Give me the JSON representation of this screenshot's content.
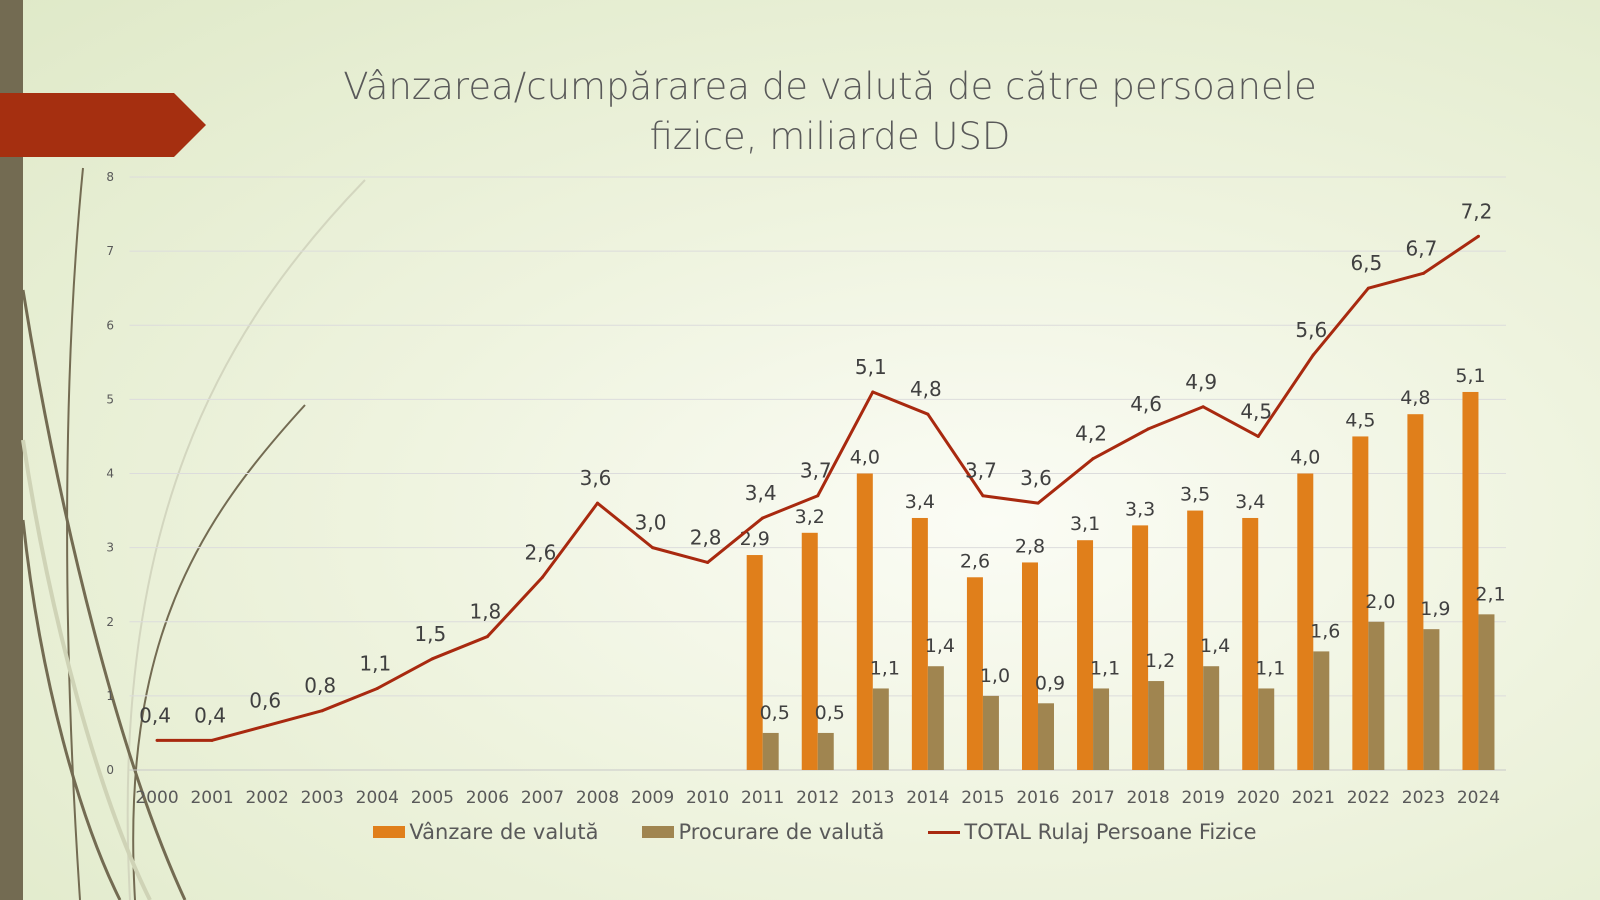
{
  "title_line1": "Vânzarea/cumpărarea de valută de către persoanele",
  "title_line2": "fizice, miliarde USD",
  "colors": {
    "sales": "#e07f1b",
    "purchase": "#a08550",
    "total": "#a8290f",
    "banner": "#a52f10",
    "sidebar": "#736b52"
  },
  "chart_data": {
    "type": "bar+line",
    "title": "Vânzarea/cumpărarea de valută de către persoanele fizice, miliarde USD",
    "categories": [
      "2000",
      "2001",
      "2002",
      "2003",
      "2004",
      "2005",
      "2006",
      "2007",
      "2008",
      "2009",
      "2010",
      "2011",
      "2012",
      "2013",
      "2014",
      "2015",
      "2016",
      "2017",
      "2018",
      "2019",
      "2020",
      "2021",
      "2022",
      "2023",
      "2024"
    ],
    "ylim": [
      0,
      8
    ],
    "yticks": [
      "0",
      "1",
      "2",
      "3",
      "4",
      "5",
      "6",
      "7",
      "8"
    ],
    "grid": true,
    "legend_position": "bottom",
    "series": [
      {
        "name": "Vânzare de valută",
        "type": "bar",
        "values": [
          null,
          null,
          null,
          null,
          null,
          null,
          null,
          null,
          null,
          null,
          null,
          2.9,
          3.2,
          4.0,
          3.4,
          2.6,
          2.8,
          3.1,
          3.3,
          3.5,
          3.4,
          4.0,
          4.5,
          4.8,
          5.1
        ]
      },
      {
        "name": "Procurare de valută",
        "type": "bar",
        "values": [
          null,
          null,
          null,
          null,
          null,
          null,
          null,
          null,
          null,
          null,
          null,
          0.5,
          0.5,
          1.1,
          1.4,
          1.0,
          0.9,
          1.1,
          1.2,
          1.4,
          1.1,
          1.6,
          2.0,
          1.9,
          2.1
        ]
      },
      {
        "name": "TOTAL Rulaj Persoane Fizice",
        "type": "line",
        "values": [
          0.4,
          0.4,
          0.6,
          0.8,
          1.1,
          1.5,
          1.8,
          2.6,
          3.6,
          3.0,
          2.8,
          3.4,
          3.7,
          5.1,
          4.8,
          3.7,
          3.6,
          4.2,
          4.6,
          4.9,
          4.5,
          5.6,
          6.5,
          6.7,
          7.2
        ]
      }
    ]
  }
}
